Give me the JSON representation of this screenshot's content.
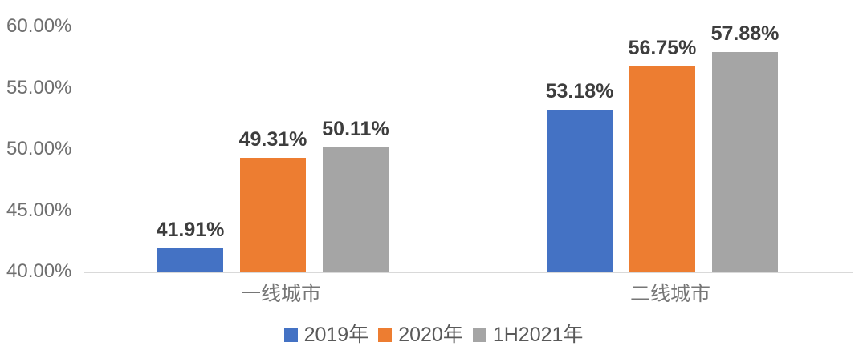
{
  "chart_data": {
    "type": "bar",
    "title": "",
    "categories": [
      "一线城市",
      "二线城市"
    ],
    "series": [
      {
        "name": "2019年",
        "color": "#4472c4",
        "values": [
          41.91,
          53.18
        ]
      },
      {
        "name": "2020年",
        "color": "#ed7d31",
        "values": [
          49.31,
          56.75
        ]
      },
      {
        "name": "1H2021年",
        "color": "#a5a5a5",
        "values": [
          50.11,
          57.88
        ]
      }
    ],
    "data_labels": [
      "41.91%",
      "49.31%",
      "50.11%",
      "53.18%",
      "56.75%",
      "57.88%"
    ],
    "y_axis": {
      "min": 40,
      "max": 60,
      "tick_labels": [
        "40.00%",
        "45.00%",
        "50.00%",
        "55.00%",
        "60.00%"
      ],
      "format": "percent"
    },
    "grid": false,
    "legend_position": "bottom",
    "axis_line_color": "#d9d9d9"
  }
}
